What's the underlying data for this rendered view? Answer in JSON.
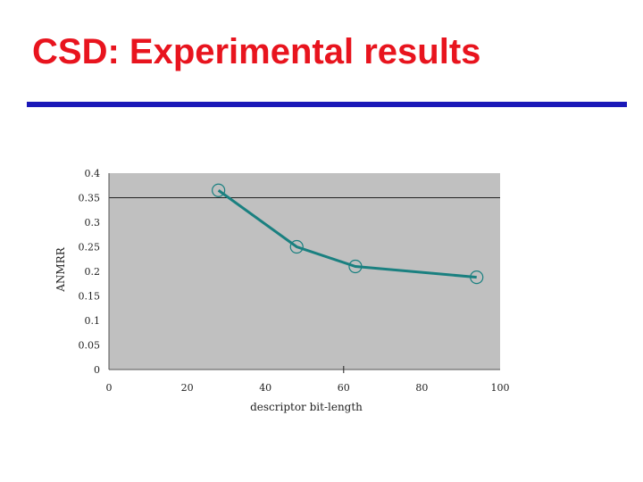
{
  "slide": {
    "title": "CSD: Experimental results"
  },
  "colors": {
    "title": "#e8141e",
    "rule": "#1a18b8",
    "plot_bg": "#c0c0c0",
    "series": "#1a8080"
  },
  "chart_data": {
    "type": "line",
    "xlabel": "descriptor bit-length",
    "ylabel": "ANMRR",
    "xlim": [
      0,
      100
    ],
    "ylim": [
      0,
      0.4
    ],
    "xticks": [
      "0",
      "20",
      "40",
      "60",
      "80",
      "100"
    ],
    "yticks": [
      "0",
      "0.05",
      "0.1",
      "0.15",
      "0.2",
      "0.25",
      "0.3",
      "0.35",
      "0.4"
    ],
    "grid": "horizontal line at 0.35",
    "series": [
      {
        "x": [
          28,
          48,
          63,
          94
        ],
        "y": [
          0.365,
          0.25,
          0.21,
          0.188
        ]
      }
    ]
  }
}
